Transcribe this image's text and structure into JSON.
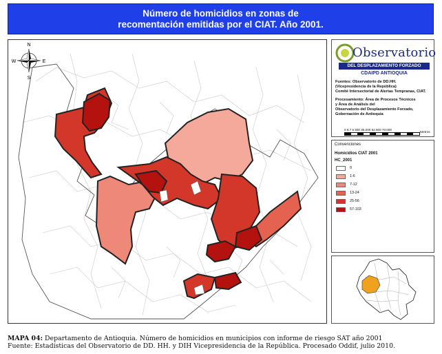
{
  "title": {
    "line1": "Número de homicidios en zonas de",
    "line2": "recomentación emitidas por el CIAT. Año 2001."
  },
  "compass": {
    "n": "N",
    "s": "S",
    "e": "E",
    "w": "W"
  },
  "logo": {
    "word": "Observatorio",
    "subtitle": "DEL DESPLAZAMIENTO FORZADO",
    "org": "CDAIPD ANTIOQUIA"
  },
  "sources": {
    "line1": "Fuentes: Observatorio de DD.HH.",
    "line2": "(Vicepresidencia de la República)",
    "line3": "Comité Intersectorial de Alertas Tempranas, CIAT."
  },
  "processing": {
    "line1": "Procesamiento: Área de Procesos Técnicos",
    "line2": "y Área de Análisis del",
    "line3": "Observatorio del Desplazamiento Forzado,",
    "line4": "Gobernación de Antioquia"
  },
  "scale": {
    "ticks": "0 8.7 5 500 35.000 52.500 70.000",
    "unit": "Metros"
  },
  "legend": {
    "section": "Convenciones",
    "title": "Homicidios CIAT 2001",
    "field": "HC_2001",
    "items": [
      {
        "label": "0",
        "color": "#ffffff"
      },
      {
        "label": "1-6",
        "color": "#f4a99a"
      },
      {
        "label": "7-12",
        "color": "#ee8878"
      },
      {
        "label": "13-24",
        "color": "#e4624f"
      },
      {
        "label": "25-56",
        "color": "#d2372a"
      },
      {
        "label": "57-103",
        "color": "#b3120f"
      }
    ]
  },
  "caption": {
    "map_label": "MAPA 04:",
    "line1": " Departamento de Antioquia. Número de homicidios en municipios con informe de riesgo SAT año 2001",
    "line2": "Fuente: Estadísticas del Observatorio de DD. HH. y DIH Vicepresidencia de la República. Procesado Oddif, julio 2010."
  },
  "colors": {
    "title_bg": "#1f40e8",
    "logo_blue": "#1b2a8a",
    "inset_highlight": "#f0a21e"
  }
}
